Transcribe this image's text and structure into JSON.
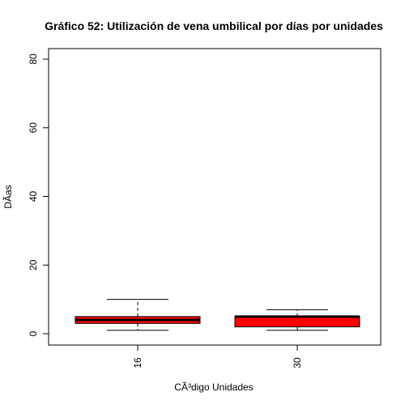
{
  "chart_data": {
    "type": "boxplot",
    "title": "Gráfico 52: Utilización de vena umbilical por días por unidades",
    "xlabel": "CÃ³digo Unidades",
    "ylabel": "DÃ­as",
    "ylim": [
      0,
      80
    ],
    "y_ticks": [
      0,
      20,
      40,
      60,
      80
    ],
    "categories": [
      "16",
      "30"
    ],
    "box_color": "#ff0000",
    "boxes": [
      {
        "category": "16",
        "whisker_low": 1,
        "q1": 3,
        "median": 4,
        "q3": 5,
        "whisker_high": 10
      },
      {
        "category": "30",
        "whisker_low": 1,
        "q1": 2,
        "median": 5,
        "q3": 5,
        "whisker_high": 7
      }
    ]
  }
}
